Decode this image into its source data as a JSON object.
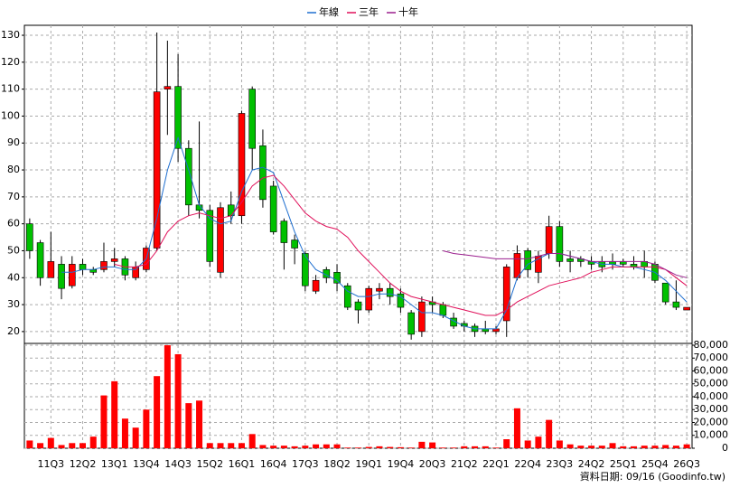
{
  "chart_data": [
    {
      "type": "candlestick",
      "categories": [
        null,
        null,
        "11Q3",
        null,
        null,
        "12Q2",
        null,
        null,
        "13Q1",
        null,
        null,
        "13Q4",
        null,
        null,
        "14Q3",
        null,
        null,
        "15Q2",
        null,
        null,
        "16Q1",
        null,
        null,
        "16Q4",
        null,
        null,
        "17Q3",
        null,
        null,
        "18Q2",
        null,
        null,
        "19Q1",
        null,
        null,
        "19Q4",
        null,
        null,
        "20Q3",
        null,
        null,
        "21Q2",
        null,
        null,
        "22Q1",
        null,
        null,
        "22Q4",
        null,
        null,
        "23Q3",
        null,
        null,
        "24Q2",
        null,
        null,
        "25Q1",
        null,
        null,
        "25Q4",
        null,
        null,
        "26Q3"
      ],
      "open": [
        60,
        53,
        40,
        45,
        37,
        45,
        43,
        43,
        46,
        47,
        40,
        43,
        51,
        110,
        111,
        88,
        67,
        65,
        42,
        67,
        63,
        110,
        89,
        74,
        61,
        54,
        49,
        35,
        43,
        42,
        37,
        31,
        28,
        35,
        36,
        34,
        27,
        20,
        31,
        30,
        25,
        23,
        22,
        21,
        20,
        24,
        40,
        50,
        42,
        49,
        59,
        47,
        47,
        46,
        46,
        46,
        46,
        45,
        46,
        45,
        38,
        31,
        28
      ],
      "high": [
        62,
        54,
        57,
        48,
        48,
        47,
        44,
        53,
        51,
        48,
        46,
        52,
        131,
        128,
        123,
        91,
        98,
        67,
        68,
        72,
        102,
        111,
        95,
        76,
        62,
        56,
        50,
        41,
        44,
        45,
        38,
        32,
        37,
        38,
        38,
        36,
        28,
        33,
        33,
        31,
        27,
        24,
        23,
        24,
        22,
        45,
        52,
        51,
        50,
        63,
        61,
        50,
        48,
        48,
        48,
        49,
        47,
        48,
        50,
        46,
        38,
        39,
        29
      ],
      "low": [
        47,
        37,
        40,
        32,
        36,
        41,
        41,
        42,
        44,
        39,
        39,
        42,
        50,
        93,
        83,
        63,
        62,
        44,
        40,
        60,
        60,
        80,
        66,
        56,
        43,
        45,
        35,
        34,
        38,
        35,
        28,
        23,
        27,
        32,
        30,
        27,
        17,
        18,
        27,
        25,
        21,
        20,
        18,
        19,
        19,
        18,
        39,
        40,
        38,
        47,
        44,
        42,
        44,
        43,
        42,
        43,
        44,
        43,
        40,
        38,
        30,
        28,
        28
      ],
      "close": [
        50,
        40,
        46,
        36,
        45,
        43,
        42,
        46,
        47,
        41,
        44,
        51,
        109,
        111,
        88,
        67,
        65,
        46,
        66,
        63,
        101,
        88,
        69,
        57,
        53,
        51,
        37,
        39,
        40,
        38,
        29,
        28,
        36,
        36,
        33,
        29,
        19,
        31,
        30,
        26,
        22,
        22,
        20,
        20,
        21,
        44,
        49,
        43,
        48,
        59,
        46,
        46,
        46,
        45,
        44,
        45,
        45,
        44,
        44,
        39,
        31,
        29,
        29
      ],
      "up_color": "#ff0000",
      "down_color": "#00c000",
      "series": [
        {
          "name": "年線",
          "color": "#1f6fd0",
          "values": [
            null,
            null,
            null,
            42,
            42,
            43,
            43,
            44,
            44,
            43,
            43,
            47,
            62,
            80,
            92,
            80,
            67,
            62,
            60,
            61,
            72,
            80,
            81,
            79,
            68,
            57,
            48,
            43,
            41,
            39,
            35,
            33,
            33,
            34,
            34,
            33,
            30,
            27,
            27,
            26,
            24,
            22,
            21,
            21,
            21,
            28,
            40,
            45,
            47,
            49,
            49,
            48,
            47,
            46,
            45,
            45,
            44,
            44,
            43,
            42,
            39,
            35,
            31
          ]
        },
        {
          "name": "三年",
          "color": "#e0105a",
          "values": [
            null,
            null,
            null,
            null,
            null,
            null,
            null,
            null,
            45,
            44,
            44,
            45,
            50,
            57,
            61,
            63,
            64,
            63,
            62,
            63,
            68,
            74,
            77,
            78,
            74,
            69,
            64,
            61,
            59,
            58,
            55,
            50,
            46,
            42,
            38,
            35,
            33,
            32,
            31,
            30,
            29,
            28,
            27,
            26,
            26,
            28,
            31,
            33,
            35,
            37,
            38,
            39,
            40,
            42,
            43,
            44,
            44,
            44,
            44,
            44,
            43,
            40,
            37
          ]
        },
        {
          "name": "十年",
          "color": "#9b1f8e",
          "values": [
            null,
            null,
            null,
            null,
            null,
            null,
            null,
            null,
            null,
            null,
            null,
            null,
            null,
            null,
            null,
            null,
            null,
            null,
            null,
            null,
            null,
            null,
            null,
            null,
            null,
            null,
            null,
            null,
            null,
            null,
            null,
            null,
            null,
            null,
            null,
            null,
            null,
            null,
            null,
            50,
            49,
            48.5,
            48,
            47.5,
            47,
            47,
            47,
            47,
            48,
            49,
            49,
            48,
            47,
            46,
            46,
            46,
            46,
            46,
            46,
            45,
            43,
            41,
            40
          ]
        }
      ],
      "ylim": [
        15.6,
        133.7
      ],
      "yticks": [
        20,
        30,
        40,
        50,
        60,
        70,
        80,
        90,
        100,
        110,
        120,
        130
      ],
      "grid": true,
      "legend": "top"
    },
    {
      "type": "bar",
      "values": [
        6000,
        4000,
        8000,
        2500,
        4000,
        4000,
        9000,
        41000,
        52000,
        23000,
        16000,
        30000,
        56000,
        80000,
        73000,
        35000,
        37000,
        4000,
        4000,
        4000,
        4000,
        11000,
        2500,
        2000,
        2000,
        1500,
        2000,
        3000,
        3000,
        3000,
        500,
        500,
        1000,
        1500,
        1000,
        800,
        500,
        5000,
        4500,
        500,
        500,
        1500,
        1500,
        1500,
        500,
        7000,
        31000,
        6000,
        9000,
        22000,
        6000,
        3000,
        2000,
        2000,
        2000,
        4000,
        1500,
        1500,
        2000,
        2000,
        2500,
        2000,
        3000
      ],
      "color": "#ff0000",
      "ylim": [
        0,
        81400
      ],
      "yticks": [
        0,
        {
          "value": 10000,
          "label": "10,000"
        },
        {
          "value": 20000,
          "label": "20,000"
        },
        {
          "value": 30000,
          "label": "30,000"
        },
        {
          "value": 40000,
          "label": "40,000"
        },
        {
          "value": 50000,
          "label": "50,000"
        },
        {
          "value": 60000,
          "label": "60,000"
        },
        {
          "value": 70000,
          "label": "70,000"
        },
        {
          "value": 80000,
          "label": "80,000"
        }
      ],
      "grid": true,
      "source": "資料日期: 09/16 (Goodinfo.tw)"
    }
  ]
}
